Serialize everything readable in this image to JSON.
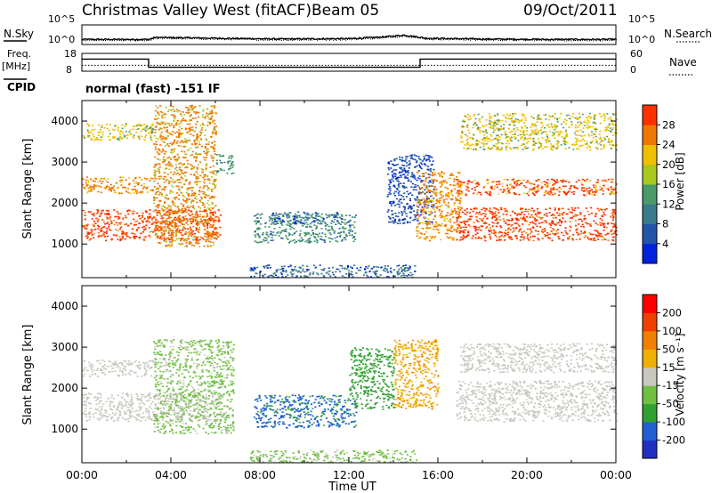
{
  "header": {
    "station": "Christmas Valley West (fitACF)",
    "beam": "Beam 05",
    "date": "09/Oct/2011"
  },
  "colors": {
    "axis": "#000000",
    "ground_scatter": "#c8c8c0",
    "power_scale": [
      "#0022dd",
      "#2255aa",
      "#3a7a8a",
      "#4a9a6a",
      "#a8c820",
      "#f0c000",
      "#f07800",
      "#ff3000",
      "#ff0000"
    ],
    "velocity_scale": [
      "#2030c0",
      "#2060d0",
      "#30a030",
      "#70c040",
      "#c8c8c0",
      "#f0b000",
      "#f08000",
      "#f04000",
      "#ff0000"
    ]
  },
  "labels": {
    "nsky": "N.Sky",
    "nsearch": "N.Search",
    "freq": "Freq.",
    "freq_unit": "[MHz]",
    "nave": "Nave",
    "cpid": "CPID",
    "cpid_value": "normal (fast) -151 IF",
    "power_label": "Power [dB]",
    "velocity_label": "Velocity [m s⁻¹]",
    "slant_range": "Slant Range [km]",
    "time_axis": "Time UT"
  },
  "chart_data": [
    {
      "type": "line",
      "panel": "noise",
      "series": [
        {
          "name": "N.Sky"
        },
        {
          "name": "N.Search"
        }
      ],
      "left_ticks": [
        "10^0",
        "10^5"
      ],
      "right_ticks": [
        "10^0",
        "10^5"
      ],
      "sky_noise_log10": [
        [
          0,
          1.3
        ],
        [
          3,
          1.3
        ],
        [
          3.3,
          1.8
        ],
        [
          5,
          1.7
        ],
        [
          6,
          1.6
        ],
        [
          9,
          1.4
        ],
        [
          12,
          1.5
        ],
        [
          13.5,
          1.9
        ],
        [
          14.5,
          2.4
        ],
        [
          15.5,
          1.6
        ],
        [
          18,
          1.4
        ],
        [
          21,
          1.3
        ],
        [
          24,
          1.3
        ]
      ]
    },
    {
      "type": "line",
      "panel": "frequency",
      "series": [
        {
          "name": "Freq.",
          "unit": "MHz"
        },
        {
          "name": "Nave"
        }
      ],
      "left_ticks": [
        "8",
        "18"
      ],
      "right_ticks": [
        "0",
        "60"
      ],
      "freq_mhz": [
        [
          0,
          14.8
        ],
        [
          3,
          14.8
        ],
        [
          3,
          10.2
        ],
        [
          15.2,
          10.2
        ],
        [
          15.2,
          14.8
        ],
        [
          24,
          14.8
        ]
      ],
      "nave": [
        [
          0,
          20
        ],
        [
          24,
          20
        ]
      ]
    },
    {
      "type": "heatmap",
      "panel": "power",
      "y_ticks": [
        "1000",
        "2000",
        "3000",
        "4000"
      ],
      "ylim": [
        180,
        4500
      ],
      "colorbar_ticks": [
        "4",
        "8",
        "12",
        "16",
        "20",
        "24",
        "28"
      ],
      "regions": [
        {
          "t": [
            0,
            6.2
          ],
          "r": [
            1100,
            1850
          ],
          "v": 30
        },
        {
          "t": [
            0,
            3.2
          ],
          "r": [
            2250,
            2650
          ],
          "v": 27
        },
        {
          "t": [
            0,
            3.2
          ],
          "r": [
            3550,
            3950
          ],
          "v": 21
        },
        {
          "t": [
            3.2,
            6
          ],
          "r": [
            950,
            4400
          ],
          "v": 25
        },
        {
          "t": [
            6,
            6.8
          ],
          "r": [
            2700,
            3200
          ],
          "v": 14
        },
        {
          "t": [
            7.7,
            12.3
          ],
          "r": [
            1050,
            1750
          ],
          "v": 13
        },
        {
          "t": [
            8.5,
            11.5
          ],
          "r": [
            1500,
            1800
          ],
          "v": 8
        },
        {
          "t": [
            7.5,
            15
          ],
          "r": [
            200,
            500
          ],
          "v": 9
        },
        {
          "t": [
            13.7,
            15.8
          ],
          "r": [
            1500,
            3200
          ],
          "v": 5
        },
        {
          "t": [
            15,
            17
          ],
          "r": [
            1100,
            2800
          ],
          "v": 26
        },
        {
          "t": [
            16.8,
            24
          ],
          "r": [
            1100,
            1900
          ],
          "v": 30
        },
        {
          "t": [
            16.8,
            24
          ],
          "r": [
            2200,
            2600
          ],
          "v": 28
        },
        {
          "t": [
            17,
            24
          ],
          "r": [
            3300,
            4200
          ],
          "v": 21
        }
      ]
    },
    {
      "type": "heatmap",
      "panel": "velocity",
      "y_ticks": [
        "1000",
        "2000",
        "3000",
        "4000"
      ],
      "ylim": [
        180,
        4500
      ],
      "colorbar_ticks": [
        "-200",
        "-100",
        "-50",
        "-15",
        "15",
        "50",
        "100",
        "200"
      ],
      "regions": [
        {
          "t": [
            0,
            6.2
          ],
          "r": [
            1200,
            1900
          ],
          "v": 0,
          "ground_scatter": true
        },
        {
          "t": [
            0,
            3.2
          ],
          "r": [
            2300,
            2700
          ],
          "v": 0,
          "ground_scatter": true
        },
        {
          "t": [
            3.2,
            6.8
          ],
          "r": [
            900,
            3200
          ],
          "v": -40
        },
        {
          "t": [
            7.7,
            12.3
          ],
          "r": [
            1050,
            1850
          ],
          "v": -120
        },
        {
          "t": [
            7.5,
            15
          ],
          "r": [
            200,
            500
          ],
          "v": -35
        },
        {
          "t": [
            12,
            14
          ],
          "r": [
            1500,
            3000
          ],
          "v": -100
        },
        {
          "t": [
            14,
            16
          ],
          "r": [
            1500,
            3200
          ],
          "v": 40
        },
        {
          "t": [
            16.8,
            24
          ],
          "r": [
            1200,
            2200
          ],
          "v": 0,
          "ground_scatter": true
        },
        {
          "t": [
            17,
            24
          ],
          "r": [
            2400,
            3100
          ],
          "v": 0,
          "ground_scatter": true
        }
      ]
    }
  ],
  "x_axis": {
    "ticks": [
      "00:00",
      "04:00",
      "08:00",
      "12:00",
      "16:00",
      "20:00",
      "00:00"
    ],
    "label": "Time UT",
    "xlim_hours": [
      0,
      24
    ]
  }
}
